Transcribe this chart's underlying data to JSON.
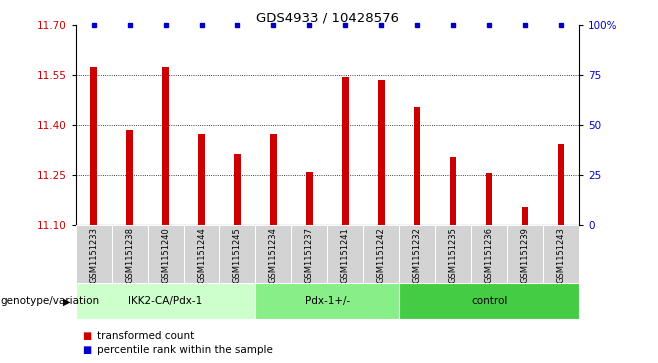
{
  "title": "GDS4933 / 10428576",
  "samples": [
    "GSM1151233",
    "GSM1151238",
    "GSM1151240",
    "GSM1151244",
    "GSM1151245",
    "GSM1151234",
    "GSM1151237",
    "GSM1151241",
    "GSM1151242",
    "GSM1151232",
    "GSM1151235",
    "GSM1151236",
    "GSM1151239",
    "GSM1151243"
  ],
  "bar_values": [
    11.575,
    11.385,
    11.575,
    11.375,
    11.315,
    11.375,
    11.26,
    11.545,
    11.535,
    11.455,
    11.305,
    11.255,
    11.155,
    11.345
  ],
  "ymin": 11.1,
  "ymax": 11.7,
  "y2min": 0,
  "y2max": 100,
  "yticks": [
    11.1,
    11.25,
    11.4,
    11.55,
    11.7
  ],
  "y2ticks": [
    0,
    25,
    50,
    75,
    100
  ],
  "bar_color": "#cc0000",
  "percentile_color": "#0000cc",
  "groups": [
    {
      "label": "IKK2-CA/Pdx-1",
      "start": 0,
      "end": 5,
      "color": "#ccffcc"
    },
    {
      "label": "Pdx-1+/-",
      "start": 5,
      "end": 9,
      "color": "#88ee88"
    },
    {
      "label": "control",
      "start": 9,
      "end": 14,
      "color": "#44cc44"
    }
  ],
  "group_label_prefix": "genotype/variation",
  "legend_bar_label": "transformed count",
  "legend_dot_label": "percentile rank within the sample",
  "tick_label_color_left": "#cc0000",
  "tick_label_color_right": "#0000cc",
  "sample_bg_color": "#d3d3d3",
  "bar_width": 0.18
}
